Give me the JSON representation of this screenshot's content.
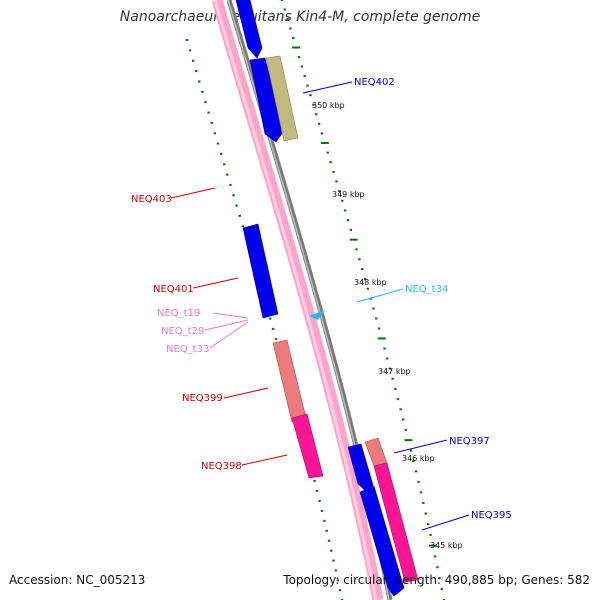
{
  "title": "Nanoarchaeum equitans Kin4-M, complete genome",
  "accession": "Accession: NC_005213",
  "summary": "Topology: circular; Length: 490,885 bp; Genes: 582",
  "colors": {
    "strand_pink": "#ffa3c8",
    "strand_gray": "#808080",
    "tick_green": "#007700",
    "blue_gene": "#0000ee",
    "olive_gene": "#c1b97d",
    "salmon_gene": "#ee7b7b",
    "magenta_gene": "#ff1493",
    "label_blue": "#0000cc",
    "label_red": "#cc0000",
    "label_pink": "#ee77bb",
    "label_cyan": "#22bbee"
  },
  "scale_ticks": [
    "350 kbp",
    "349 kbp",
    "348 kbp",
    "347 kbp",
    "346 kbp",
    "345 kbp"
  ],
  "gene_labels": [
    "NEQ402",
    "NEQ403",
    "NEQ401",
    "NEQ_t19",
    "NEQ_t29",
    "NEQ_t33",
    "NEQ399",
    "NEQ398",
    "NEQ_t34",
    "NEQ397",
    "NEQ395"
  ]
}
